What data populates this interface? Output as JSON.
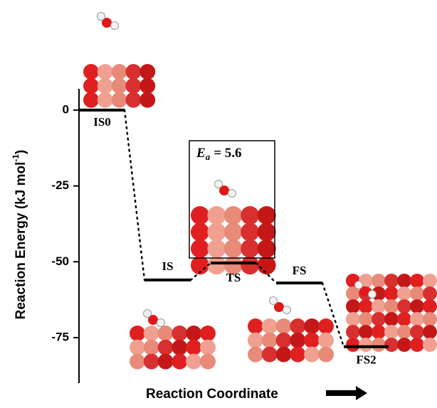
{
  "chart_data": {
    "type": "energy_profile",
    "y_label": "Reaction Energy (kJ mol",
    "y_label_sup": "-1",
    "y_label_end": ")",
    "x_label": "Reaction Coordinate",
    "categories": [
      "IS0",
      "IS",
      "TS",
      "FS",
      "FS2"
    ],
    "values": [
      0,
      -56,
      -50.4,
      -57,
      -78
    ],
    "color": "#000000",
    "ylim": [
      -90,
      7
    ],
    "yticks": [
      0,
      -25,
      -50,
      -75
    ],
    "annotation": {
      "symbol": "E",
      "subscript": "a",
      "text": "= 5.6"
    }
  }
}
